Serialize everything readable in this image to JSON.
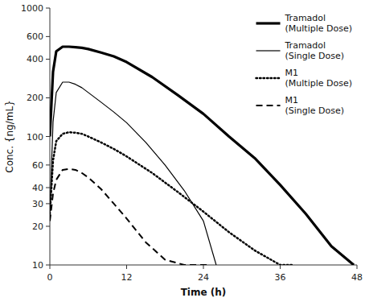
{
  "chart_data": {
    "type": "line",
    "xlabel": "Time (h)",
    "ylabel": "Conc. {ng/mL}",
    "log": "y",
    "grid": false,
    "legend": "upper right",
    "xlim": [
      0,
      48
    ],
    "ylim": [
      10,
      1000
    ],
    "xticks": [
      0,
      12,
      24,
      36,
      48
    ],
    "yticks": [
      10,
      20,
      30,
      40,
      60,
      100,
      200,
      400,
      600,
      1000
    ],
    "series": [
      {
        "name": "Tramadol\n(Multiple Dose)",
        "color": "#000000",
        "line_style": "solid",
        "x": [
          0,
          0.5,
          1,
          2,
          3,
          4,
          5,
          6,
          8,
          10,
          12,
          16,
          20,
          24,
          28,
          32,
          36,
          40,
          44,
          47.5
        ],
        "values": [
          100,
          320,
          460,
          500,
          500,
          495,
          490,
          480,
          450,
          420,
          380,
          290,
          210,
          150,
          100,
          68,
          42,
          25,
          14,
          10
        ]
      },
      {
        "name": "Tramadol\n(Single Dose)",
        "color": "#000000",
        "line_style": "solid",
        "x": [
          0,
          0.5,
          1,
          2,
          3,
          4,
          5,
          6,
          8,
          10,
          12,
          15,
          18,
          21,
          24,
          26
        ],
        "values": [
          25,
          130,
          220,
          265,
          265,
          255,
          240,
          220,
          185,
          155,
          128,
          90,
          60,
          38,
          22,
          10
        ]
      },
      {
        "name": "M1\n(Multiple Dose)",
        "color": "#000000",
        "line_style": "dotted",
        "x": [
          0,
          0.5,
          1,
          2,
          3,
          4,
          5,
          6,
          8,
          10,
          12,
          16,
          20,
          24,
          28,
          32,
          36,
          38
        ],
        "values": [
          25,
          65,
          92,
          105,
          108,
          107,
          105,
          100,
          90,
          80,
          70,
          52,
          37,
          26,
          18,
          13,
          10,
          10
        ]
      },
      {
        "name": "M1\n(Single Dose)",
        "color": "#000000",
        "line_style": "dashed",
        "x": [
          0,
          0.5,
          1,
          2,
          3,
          4,
          5,
          6,
          8,
          10,
          12,
          15,
          18,
          21,
          24,
          25
        ],
        "values": [
          22,
          36,
          46,
          55,
          56,
          55,
          52,
          48,
          39,
          30,
          23,
          15,
          11,
          10,
          10,
          10
        ]
      }
    ]
  }
}
